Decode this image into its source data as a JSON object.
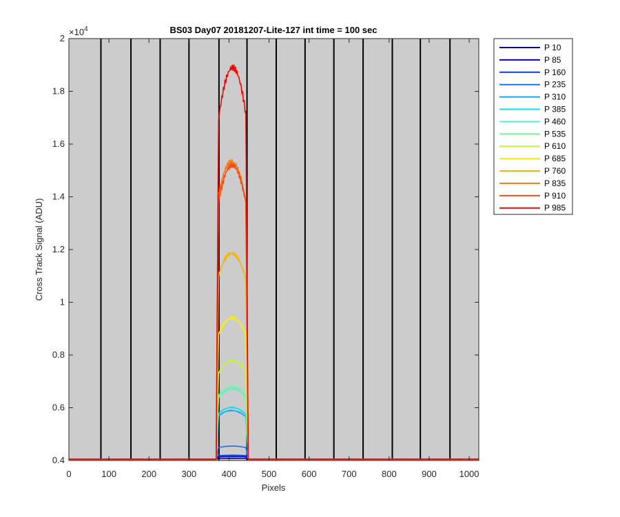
{
  "chart_data": {
    "type": "line",
    "title": "BS03 Day07 20181207-Lite-127 int time = 100 sec",
    "xlabel": "Pixels",
    "ylabel": "Cross Track Signal (ADU)",
    "y_exponent_label": "×10",
    "y_exponent_power": "4",
    "xlim": [
      0,
      1024
    ],
    "ylim": [
      4000,
      20000
    ],
    "xticks": [
      0,
      100,
      200,
      300,
      400,
      500,
      600,
      700,
      800,
      900,
      1000
    ],
    "xtick_labels": [
      "0",
      "100",
      "200",
      "300",
      "400",
      "500",
      "600",
      "700",
      "800",
      "900",
      "1000"
    ],
    "yticks": [
      4000,
      6000,
      8000,
      10000,
      12000,
      14000,
      16000,
      18000,
      20000
    ],
    "ytick_labels": [
      "0.4",
      "0.6",
      "0.8",
      "1",
      "1.2",
      "1.4",
      "1.6",
      "1.8",
      "2"
    ],
    "background_color": "#cccccc",
    "grid": false,
    "vertical_lines_x": [
      80,
      155,
      228,
      300,
      375,
      445,
      518,
      590,
      662,
      735,
      808,
      878,
      952
    ],
    "legend_position": "outside-top-right",
    "baseline": 4050,
    "signal_x_range": [
      368,
      448
    ],
    "series": [
      {
        "name": "P 10",
        "color": "#000080",
        "peak": 4080
      },
      {
        "name": "P 85",
        "color": "#0000c4",
        "peak": 4150
      },
      {
        "name": "P 160",
        "color": "#0a3ad8",
        "peak": 4200
      },
      {
        "name": "P 235",
        "color": "#1a6ef0",
        "peak": 4550
      },
      {
        "name": "P 310",
        "color": "#14a6f2",
        "peak": 5900
      },
      {
        "name": "P 385",
        "color": "#10dcf0",
        "peak": 6000
      },
      {
        "name": "P 460",
        "color": "#50f0d0",
        "peak": 6700
      },
      {
        "name": "P 535",
        "color": "#7af59c",
        "peak": 6800
      },
      {
        "name": "P 610",
        "color": "#c4f53a",
        "peak": 7800
      },
      {
        "name": "P 685",
        "color": "#f5f00a",
        "peak": 9450
      },
      {
        "name": "P 760",
        "color": "#f5b40a",
        "peak": 11900
      },
      {
        "name": "P 835",
        "color": "#f57a10",
        "peak": 15300
      },
      {
        "name": "P 910",
        "color": "#f54a14",
        "peak": 15100
      },
      {
        "name": "P 985",
        "color": "#e60a0a",
        "peak": 18800
      }
    ]
  }
}
